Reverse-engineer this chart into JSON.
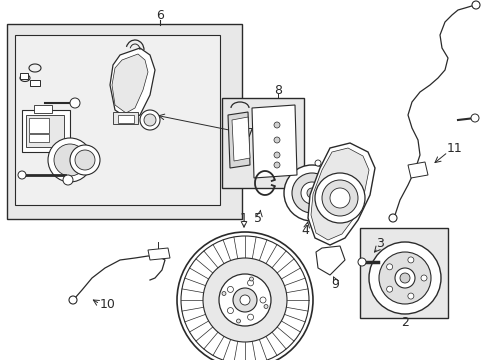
{
  "bg_color": "#ffffff",
  "line_color": "#2a2a2a",
  "box_fill_outer": "#e8e8e8",
  "box_fill_inner": "#f0f0f0",
  "white": "#ffffff",
  "gray_light": "#d8d8d8",
  "gray_mid": "#c0c0c0"
}
